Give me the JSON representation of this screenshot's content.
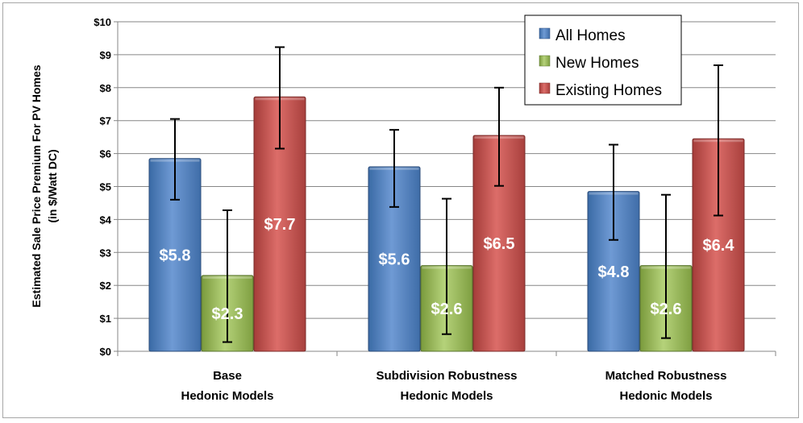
{
  "chart_data": {
    "type": "bar",
    "title": "",
    "ylabel_lines": [
      "Estimated Sale Price Premium For PV Homes",
      "(in $/Watt DC)"
    ],
    "xlabel": "",
    "ylim": [
      0,
      10
    ],
    "yticks": [
      {
        "value": 0,
        "label": "$0"
      },
      {
        "value": 1,
        "label": "$1"
      },
      {
        "value": 2,
        "label": "$2"
      },
      {
        "value": 3,
        "label": "$3"
      },
      {
        "value": 4,
        "label": "$4"
      },
      {
        "value": 5,
        "label": "$5"
      },
      {
        "value": 6,
        "label": "$6"
      },
      {
        "value": 7,
        "label": "$7"
      },
      {
        "value": 8,
        "label": "$8"
      },
      {
        "value": 9,
        "label": "$9"
      },
      {
        "value": 10,
        "label": "$10"
      }
    ],
    "grid": true,
    "legend_position": "top-right",
    "categories": [
      {
        "line1": "Base",
        "line2": "Hedonic Models"
      },
      {
        "line1": "Subdivision Robustness",
        "line2": "Hedonic Models"
      },
      {
        "line1": "Matched Robustness",
        "line2": "Hedonic Models"
      }
    ],
    "series": [
      {
        "name": "All Homes",
        "color": "#4f81bd",
        "values": [
          5.85,
          5.6,
          4.85
        ],
        "labels": [
          "$5.8",
          "$5.6",
          "$4.8"
        ],
        "error_low": [
          4.6,
          4.38,
          3.38
        ],
        "error_high": [
          7.05,
          6.72,
          6.27
        ]
      },
      {
        "name": "New Homes",
        "color": "#9bbb59",
        "values": [
          2.3,
          2.6,
          2.6
        ],
        "labels": [
          "$2.3",
          "$2.6",
          "$2.6"
        ],
        "error_low": [
          0.28,
          0.52,
          0.4
        ],
        "error_high": [
          4.28,
          4.63,
          4.75
        ]
      },
      {
        "name": "Existing Homes",
        "color": "#c0504d",
        "values": [
          7.72,
          6.55,
          6.45
        ],
        "labels": [
          "$7.7",
          "$6.5",
          "$6.4"
        ],
        "error_low": [
          6.15,
          5.02,
          4.12
        ],
        "error_high": [
          9.23,
          8.0,
          8.68
        ]
      }
    ]
  }
}
